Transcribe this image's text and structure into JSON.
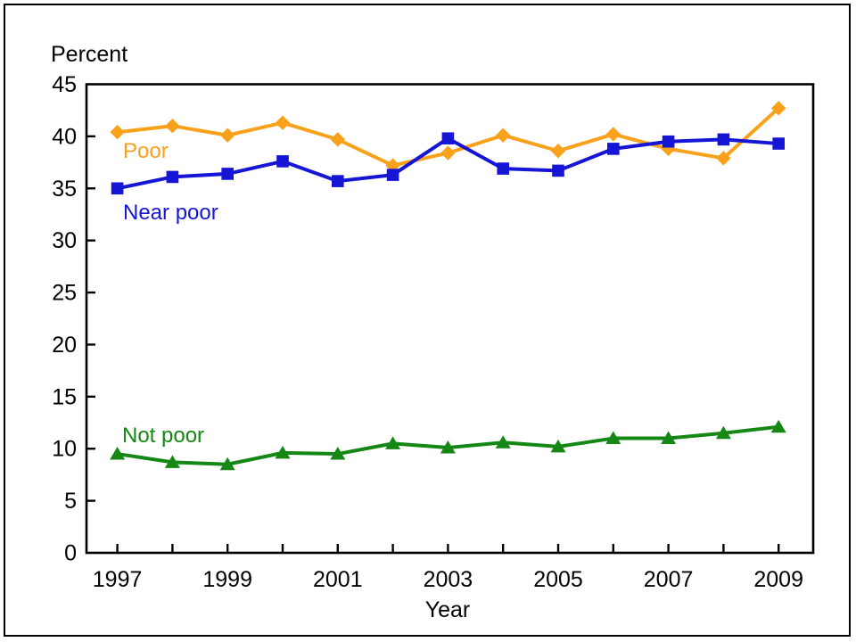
{
  "figure": {
    "y_axis_title": "Percent",
    "x_axis_title": "Year"
  },
  "chart_data": {
    "type": "line",
    "title": "",
    "ylabel": "Percent",
    "xlabel": "Year",
    "ylim": [
      0,
      45
    ],
    "y_ticks": [
      0,
      5,
      10,
      15,
      20,
      25,
      30,
      35,
      40,
      45
    ],
    "grid": false,
    "legend_position": "inline-labels",
    "x": [
      1997,
      1998,
      1999,
      2000,
      2001,
      2002,
      2003,
      2004,
      2005,
      2006,
      2007,
      2008,
      2009
    ],
    "x_labeled_ticks": [
      1997,
      1999,
      2001,
      2003,
      2005,
      2007,
      2009
    ],
    "series": [
      {
        "name": "Poor",
        "color": "#F9A11B",
        "marker": "diamond",
        "values": [
          40.4,
          41.0,
          40.1,
          41.3,
          39.7,
          37.2,
          38.4,
          40.1,
          38.6,
          40.2,
          38.8,
          37.9,
          42.7
        ]
      },
      {
        "name": "Near poor",
        "color": "#1515D6",
        "marker": "square",
        "values": [
          35.0,
          36.1,
          36.4,
          37.6,
          35.7,
          36.3,
          39.8,
          36.9,
          36.7,
          38.8,
          39.5,
          39.7,
          39.3
        ]
      },
      {
        "name": "Not poor",
        "color": "#148714",
        "marker": "triangle",
        "values": [
          9.5,
          8.7,
          8.5,
          9.6,
          9.5,
          10.5,
          10.1,
          10.6,
          10.2,
          11.0,
          11.0,
          11.5,
          12.1
        ]
      }
    ]
  }
}
